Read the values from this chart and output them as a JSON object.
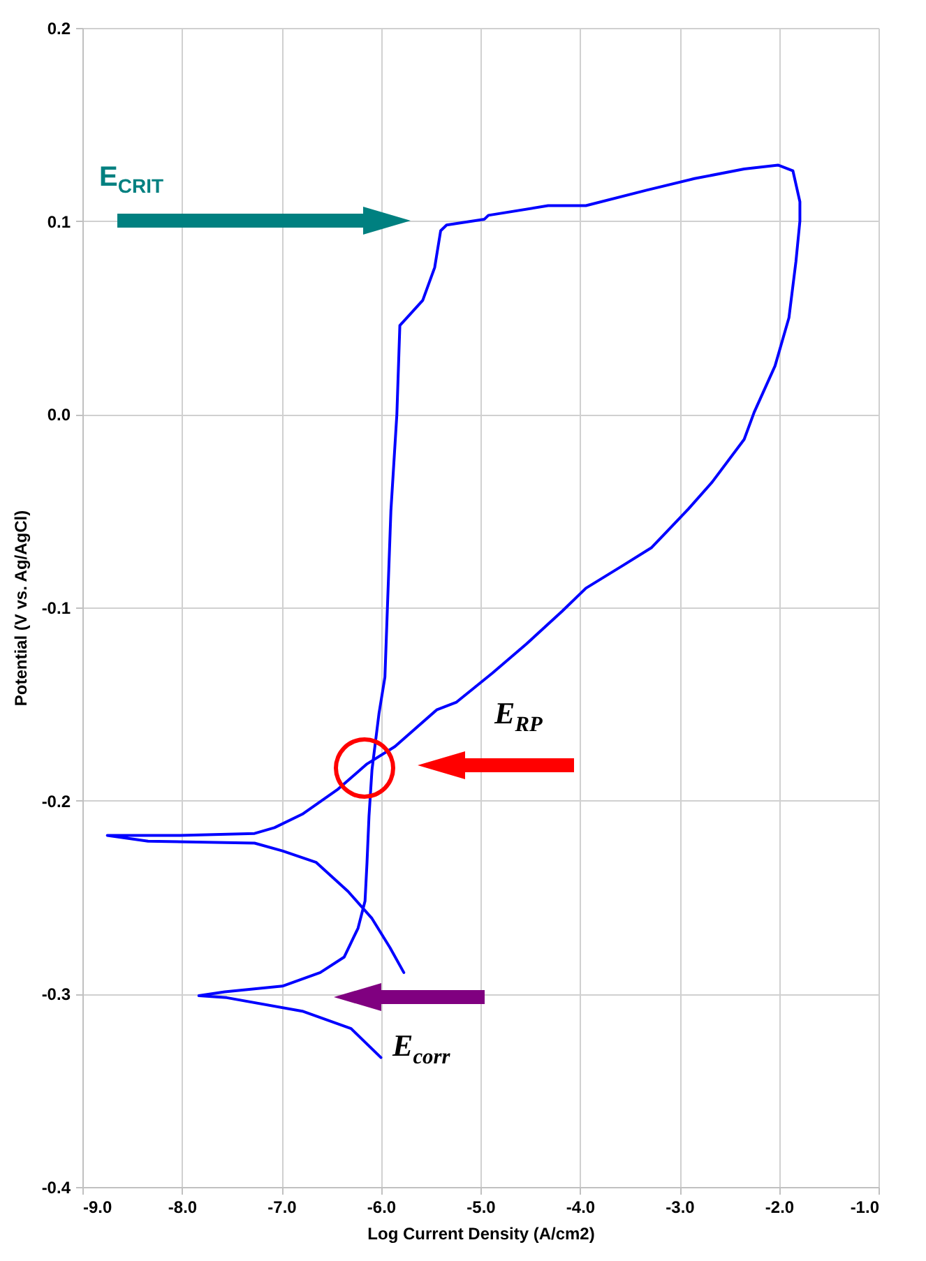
{
  "chart_data": {
    "type": "line",
    "xlabel": "Log Current Density (A/cm2)",
    "ylabel": "Potential (V vs. Ag/AgCl)",
    "xlim": [
      -9,
      -1
    ],
    "xticks": [
      {
        "value": -9,
        "label": "-9.0"
      },
      {
        "value": -8,
        "label": "-8.0"
      },
      {
        "value": -7,
        "label": "-7.0"
      },
      {
        "value": -6,
        "label": "-6.0"
      },
      {
        "value": -5,
        "label": "-5.0"
      },
      {
        "value": -4,
        "label": "-4.0"
      },
      {
        "value": -3,
        "label": "-3.0"
      },
      {
        "value": -2,
        "label": "-2.0"
      },
      {
        "value": -1,
        "label": "-1.0"
      }
    ],
    "ylim": [
      -0.4,
      0.2
    ],
    "yticks": [
      -0.4,
      -0.3,
      -0.2,
      -0.1,
      {
        "value": 0,
        "label": "0.0"
      },
      0.1,
      0.2
    ],
    "grid": true,
    "marker": "none",
    "line_style": "solid",
    "series": [
      {
        "color": "#0000ff",
        "x": [
          -6.0,
          -6.3,
          -6.79,
          -7.55,
          -7.83,
          -7.57,
          -6.99,
          -6.61,
          -6.37,
          -6.23,
          -6.16,
          -6.14,
          -6.12,
          -6.09,
          -6.02,
          -5.96,
          -5.9,
          -5.84,
          -5.81,
          -5.72,
          -5.58,
          -5.46,
          -5.4,
          -5.34,
          -4.96,
          -4.92,
          -4.32,
          -3.94,
          -3.33,
          -2.85,
          -2.35,
          -2.01,
          -1.86,
          -1.79,
          -1.79,
          -1.83,
          -1.9,
          -2.04,
          -2.25,
          -2.35,
          -2.67,
          -2.91,
          -3.28,
          -3.56,
          -3.94,
          -4.18,
          -4.54,
          -4.88,
          -5.24,
          -5.44,
          -5.86,
          -6.14,
          -6.43,
          -6.79,
          -7.07,
          -7.27,
          -8.02,
          -8.75,
          -8.34,
          -7.27,
          -6.99,
          -6.65,
          -6.33,
          -6.09,
          -5.91,
          -5.77
        ],
        "values": [
          -0.333,
          -0.318,
          -0.309,
          -0.302,
          -0.301,
          -0.299,
          -0.296,
          -0.289,
          -0.281,
          -0.266,
          -0.252,
          -0.232,
          -0.208,
          -0.184,
          -0.155,
          -0.136,
          -0.05,
          0.0,
          0.046,
          0.051,
          0.059,
          0.076,
          0.095,
          0.098,
          0.101,
          0.103,
          0.108,
          0.108,
          0.116,
          0.122,
          0.127,
          0.129,
          0.126,
          0.11,
          0.1,
          0.079,
          0.05,
          0.025,
          0.001,
          -0.013,
          -0.035,
          -0.049,
          -0.069,
          -0.078,
          -0.09,
          -0.102,
          -0.119,
          -0.134,
          -0.149,
          -0.153,
          -0.172,
          -0.181,
          -0.194,
          -0.207,
          -0.214,
          -0.217,
          -0.218,
          -0.218,
          -0.221,
          -0.222,
          -0.226,
          -0.232,
          -0.247,
          -0.261,
          -0.276,
          -0.289
        ]
      }
    ],
    "annotations": [
      "E$_{CRIT}$",
      "E$_{RP}$",
      "E$_{corr}$"
    ]
  }
}
